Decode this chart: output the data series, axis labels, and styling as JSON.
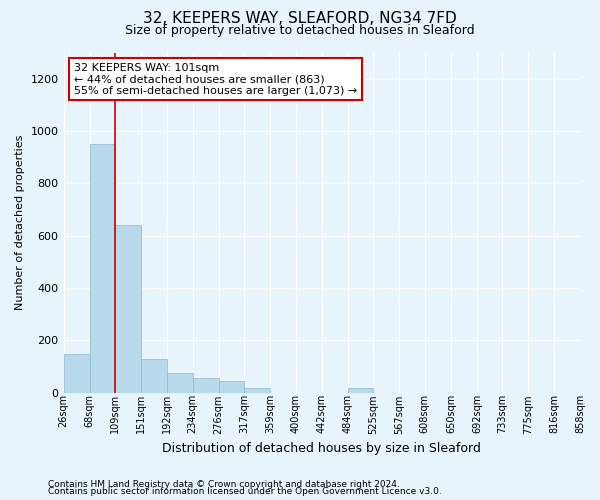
{
  "title1": "32, KEEPERS WAY, SLEAFORD, NG34 7FD",
  "title2": "Size of property relative to detached houses in Sleaford",
  "xlabel": "Distribution of detached houses by size in Sleaford",
  "ylabel": "Number of detached properties",
  "footnote1": "Contains HM Land Registry data © Crown copyright and database right 2024.",
  "footnote2": "Contains public sector information licensed under the Open Government Licence v3.0.",
  "annotation_title": "32 KEEPERS WAY: 101sqm",
  "annotation_line1": "← 44% of detached houses are smaller (863)",
  "annotation_line2": "55% of semi-detached houses are larger (1,073) →",
  "bar_color": "#b8d9ea",
  "bar_edge_color": "#8ab8d0",
  "vline_color": "#cc0000",
  "vline_x": 109,
  "bin_edges": [
    26,
    68,
    109,
    151,
    192,
    234,
    276,
    317,
    359,
    400,
    442,
    484,
    525,
    567,
    608,
    650,
    692,
    733,
    775,
    816,
    858
  ],
  "bar_heights": [
    150,
    950,
    640,
    130,
    75,
    55,
    45,
    18,
    0,
    0,
    0,
    18,
    0,
    0,
    0,
    0,
    0,
    0,
    0,
    0
  ],
  "ylim": [
    0,
    1300
  ],
  "yticks": [
    0,
    200,
    400,
    600,
    800,
    1000,
    1200
  ],
  "bg_color": "#e8f4fc",
  "plot_bg": "#e8f4fc",
  "annotation_box_facecolor": "white",
  "annotation_box_edgecolor": "#cc0000",
  "grid_color": "white",
  "title1_fontsize": 11,
  "title2_fontsize": 9,
  "xlabel_fontsize": 9,
  "ylabel_fontsize": 8,
  "xtick_fontsize": 7,
  "ytick_fontsize": 8,
  "footnote_fontsize": 6.5,
  "annotation_fontsize": 8
}
